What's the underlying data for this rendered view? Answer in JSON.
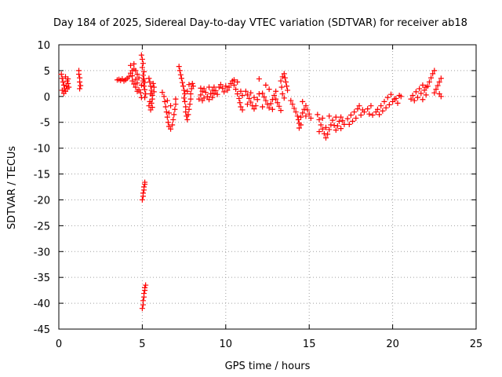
{
  "chart_data": {
    "type": "scatter",
    "title": "Day 184 of 2025, Sidereal Day-to-day VTEC variation (SDTVAR) for receiver ab18",
    "xlabel": "GPS time / hours",
    "ylabel": "SDTVAR / TECUs",
    "xlim": [
      0,
      25
    ],
    "ylim": [
      -45,
      10
    ],
    "xticks": [
      0,
      5,
      10,
      15,
      20,
      25
    ],
    "yticks": [
      10,
      5,
      0,
      -5,
      -10,
      -15,
      -20,
      -25,
      -30,
      -35,
      -40,
      -45
    ],
    "grid": true,
    "marker": "plus",
    "color": "#ff0000",
    "series": [
      {
        "name": "SDTVAR",
        "points": [
          [
            0.15,
            4.3
          ],
          [
            0.2,
            3.5
          ],
          [
            0.25,
            2.8
          ],
          [
            0.3,
            2.2
          ],
          [
            0.35,
            1.5
          ],
          [
            0.4,
            1.0
          ],
          [
            0.45,
            2.0
          ],
          [
            0.5,
            3.0
          ],
          [
            0.55,
            2.5
          ],
          [
            0.6,
            1.8
          ],
          [
            0.2,
            1.2
          ],
          [
            0.3,
            0.6
          ],
          [
            0.4,
            3.8
          ],
          [
            0.5,
            1.5
          ],
          [
            0.55,
            3.4
          ],
          [
            1.2,
            5.0
          ],
          [
            1.2,
            4.3
          ],
          [
            1.25,
            3.6
          ],
          [
            1.25,
            2.8
          ],
          [
            1.3,
            2.1
          ],
          [
            1.25,
            1.5
          ],
          [
            3.5,
            3.2
          ],
          [
            3.6,
            3.3
          ],
          [
            3.7,
            3.1
          ],
          [
            3.8,
            3.4
          ],
          [
            3.9,
            3.0
          ],
          [
            4.0,
            3.2
          ],
          [
            4.1,
            3.5
          ],
          [
            4.2,
            3.8
          ],
          [
            4.3,
            4.5
          ],
          [
            4.4,
            5.0
          ],
          [
            4.5,
            5.3
          ],
          [
            4.6,
            5.0
          ],
          [
            4.7,
            4.3
          ],
          [
            4.8,
            3.6
          ],
          [
            4.4,
            3.0
          ],
          [
            4.5,
            2.4
          ],
          [
            4.6,
            1.8
          ],
          [
            4.7,
            2.6
          ],
          [
            4.8,
            1.3
          ],
          [
            4.9,
            0.7
          ],
          [
            4.95,
            -0.2
          ],
          [
            4.3,
            6.0
          ],
          [
            4.5,
            6.3
          ],
          [
            4.4,
            4.0
          ],
          [
            4.6,
            3.3
          ],
          [
            4.7,
            1.0
          ],
          [
            4.95,
            8.0
          ],
          [
            5.0,
            7.2
          ],
          [
            5.05,
            6.4
          ],
          [
            5.0,
            5.6
          ],
          [
            5.1,
            4.8
          ],
          [
            5.05,
            4.1
          ],
          [
            5.1,
            3.4
          ],
          [
            5.15,
            2.7
          ],
          [
            5.1,
            2.0
          ],
          [
            5.15,
            1.3
          ],
          [
            5.2,
            0.5
          ],
          [
            5.15,
            -0.2
          ],
          [
            5.05,
            3.0
          ],
          [
            4.95,
            2.2
          ],
          [
            5.0,
            -20.0
          ],
          [
            5.05,
            -19.3
          ],
          [
            5.05,
            -18.7
          ],
          [
            5.1,
            -18.1
          ],
          [
            5.1,
            -17.5
          ],
          [
            5.15,
            -17.0
          ],
          [
            5.15,
            -16.6
          ],
          [
            5.0,
            -41.0
          ],
          [
            5.05,
            -40.3
          ],
          [
            5.05,
            -39.5
          ],
          [
            5.1,
            -38.8
          ],
          [
            5.1,
            -38.1
          ],
          [
            5.15,
            -37.5
          ],
          [
            5.15,
            -37.0
          ],
          [
            5.2,
            -36.5
          ],
          [
            5.4,
            3.5
          ],
          [
            5.45,
            2.8
          ],
          [
            5.5,
            2.0
          ],
          [
            5.55,
            1.2
          ],
          [
            5.5,
            0.5
          ],
          [
            5.6,
            -0.5
          ],
          [
            5.55,
            -1.3
          ],
          [
            5.6,
            -2.1
          ],
          [
            5.65,
            2.5
          ],
          [
            5.7,
            1.8
          ],
          [
            5.5,
            -2.6
          ],
          [
            5.4,
            -1.8
          ],
          [
            5.45,
            -1.0
          ],
          [
            5.6,
            0.2
          ],
          [
            5.7,
            0.9
          ],
          [
            6.2,
            0.8
          ],
          [
            6.3,
            0.0
          ],
          [
            6.35,
            -1.0
          ],
          [
            6.4,
            -2.0
          ],
          [
            6.45,
            -3.0
          ],
          [
            6.5,
            -4.0
          ],
          [
            6.55,
            -5.0
          ],
          [
            6.6,
            -5.8
          ],
          [
            6.7,
            -6.3
          ],
          [
            6.8,
            -5.5
          ],
          [
            6.85,
            -4.5
          ],
          [
            6.9,
            -3.5
          ],
          [
            6.95,
            -2.5
          ],
          [
            7.0,
            -1.5
          ],
          [
            7.0,
            -0.5
          ],
          [
            6.6,
            -3.2
          ],
          [
            6.7,
            -1.8
          ],
          [
            6.5,
            -0.8
          ],
          [
            7.2,
            5.8
          ],
          [
            7.25,
            5.0
          ],
          [
            7.3,
            4.2
          ],
          [
            7.35,
            3.5
          ],
          [
            7.4,
            2.7
          ],
          [
            7.45,
            2.0
          ],
          [
            7.5,
            1.2
          ],
          [
            7.55,
            0.5
          ],
          [
            7.5,
            -0.3
          ],
          [
            7.55,
            -1.0
          ],
          [
            7.6,
            -2.0
          ],
          [
            7.6,
            -3.0
          ],
          [
            7.65,
            -3.8
          ],
          [
            7.7,
            -4.5
          ],
          [
            7.75,
            -3.5
          ],
          [
            7.8,
            -2.5
          ],
          [
            7.85,
            -1.5
          ],
          [
            7.9,
            -0.5
          ],
          [
            7.9,
            0.5
          ],
          [
            7.95,
            1.5
          ],
          [
            8.0,
            2.5
          ],
          [
            8.05,
            2.0
          ],
          [
            7.7,
            1.0
          ],
          [
            7.8,
            2.3
          ],
          [
            8.4,
            -0.5
          ],
          [
            8.5,
            0.3
          ],
          [
            8.6,
            1.0
          ],
          [
            8.7,
            1.5
          ],
          [
            8.8,
            0.8
          ],
          [
            8.9,
            0.0
          ],
          [
            9.0,
            -0.6
          ],
          [
            9.1,
            0.5
          ],
          [
            9.2,
            1.2
          ],
          [
            9.3,
            1.8
          ],
          [
            9.4,
            1.1
          ],
          [
            9.5,
            0.4
          ],
          [
            8.5,
            1.6
          ],
          [
            8.7,
            -0.3
          ],
          [
            9.0,
            1.8
          ],
          [
            9.2,
            -0.2
          ],
          [
            9.3,
            0.6
          ],
          [
            8.6,
            -0.8
          ],
          [
            9.6,
            1.8
          ],
          [
            9.7,
            2.3
          ],
          [
            9.8,
            1.6
          ],
          [
            9.9,
            0.9
          ],
          [
            10.0,
            2.0
          ],
          [
            10.1,
            1.2
          ],
          [
            10.2,
            1.8
          ],
          [
            10.3,
            2.5
          ],
          [
            10.4,
            3.0
          ],
          [
            10.5,
            2.2
          ],
          [
            10.6,
            1.4
          ],
          [
            10.7,
            0.5
          ],
          [
            10.8,
            -0.4
          ],
          [
            10.85,
            -1.2
          ],
          [
            10.9,
            -2.0
          ],
          [
            11.0,
            -2.6
          ],
          [
            10.5,
            3.2
          ],
          [
            10.7,
            2.8
          ],
          [
            10.9,
            1.0
          ],
          [
            11.0,
            0.2
          ],
          [
            11.2,
            1.0
          ],
          [
            11.3,
            0.3
          ],
          [
            11.4,
            -0.4
          ],
          [
            11.5,
            -1.1
          ],
          [
            11.6,
            -1.8
          ],
          [
            11.7,
            -2.4
          ],
          [
            11.8,
            -1.8
          ],
          [
            11.9,
            -0.6
          ],
          [
            12.0,
            0.5
          ],
          [
            12.0,
            3.4
          ],
          [
            11.5,
            0.7
          ],
          [
            11.7,
            -0.2
          ],
          [
            11.3,
            -1.5
          ],
          [
            12.2,
            0.6
          ],
          [
            12.3,
            -0.1
          ],
          [
            12.4,
            -0.8
          ],
          [
            12.5,
            -1.5
          ],
          [
            12.6,
            -2.2
          ],
          [
            12.7,
            -1.4
          ],
          [
            12.8,
            -0.6
          ],
          [
            12.9,
            0.2
          ],
          [
            13.0,
            -0.5
          ],
          [
            13.1,
            -1.2
          ],
          [
            13.2,
            -1.9
          ],
          [
            13.3,
            -2.7
          ],
          [
            12.4,
            2.2
          ],
          [
            12.6,
            1.4
          ],
          [
            12.8,
            -2.5
          ],
          [
            13.0,
            1.0
          ],
          [
            12.2,
            -2.0
          ],
          [
            13.3,
            3.0
          ],
          [
            13.4,
            3.8
          ],
          [
            13.5,
            4.4
          ],
          [
            13.55,
            3.6
          ],
          [
            13.6,
            2.8
          ],
          [
            13.65,
            2.0
          ],
          [
            13.7,
            1.2
          ],
          [
            13.4,
            0.5
          ],
          [
            13.5,
            -0.3
          ],
          [
            13.35,
            1.8
          ],
          [
            13.9,
            -0.8
          ],
          [
            14.0,
            -1.5
          ],
          [
            14.1,
            -2.3
          ],
          [
            14.2,
            -3.0
          ],
          [
            14.3,
            -3.8
          ],
          [
            14.35,
            -4.5
          ],
          [
            14.4,
            -5.2
          ],
          [
            14.4,
            -6.1
          ],
          [
            14.5,
            -4.0
          ],
          [
            14.6,
            -3.2
          ],
          [
            14.7,
            -2.5
          ],
          [
            14.8,
            -1.8
          ],
          [
            14.9,
            -2.6
          ],
          [
            15.0,
            -3.4
          ],
          [
            15.1,
            -4.2
          ],
          [
            14.5,
            -5.5
          ],
          [
            14.6,
            -1.0
          ],
          [
            14.8,
            -3.8
          ],
          [
            15.5,
            -3.5
          ],
          [
            15.6,
            -4.5
          ],
          [
            15.7,
            -5.5
          ],
          [
            15.8,
            -6.3
          ],
          [
            15.9,
            -7.2
          ],
          [
            16.0,
            -8.0
          ],
          [
            16.1,
            -7.3
          ],
          [
            16.2,
            -6.4
          ],
          [
            16.3,
            -5.5
          ],
          [
            16.4,
            -4.6
          ],
          [
            16.5,
            -5.6
          ],
          [
            16.6,
            -6.5
          ],
          [
            16.7,
            -5.7
          ],
          [
            16.8,
            -4.8
          ],
          [
            16.9,
            -4.0
          ],
          [
            17.0,
            -4.7
          ],
          [
            17.1,
            -5.4
          ],
          [
            15.6,
            -6.8
          ],
          [
            15.8,
            -4.2
          ],
          [
            16.0,
            -6.0
          ],
          [
            16.2,
            -3.8
          ],
          [
            16.6,
            -4.0
          ],
          [
            16.9,
            -6.2
          ],
          [
            17.3,
            -4.3
          ],
          [
            17.5,
            -3.6
          ],
          [
            17.7,
            -3.0
          ],
          [
            17.9,
            -2.4
          ],
          [
            18.0,
            -1.8
          ],
          [
            17.4,
            -5.4
          ],
          [
            17.6,
            -4.8
          ],
          [
            17.8,
            -4.2
          ],
          [
            18.1,
            -3.6
          ],
          [
            18.3,
            -3.0
          ],
          [
            18.5,
            -2.4
          ],
          [
            18.7,
            -1.8
          ],
          [
            18.2,
            -2.6
          ],
          [
            18.6,
            -3.4
          ],
          [
            18.8,
            -3.6
          ],
          [
            19.0,
            -3.0
          ],
          [
            19.2,
            -3.5
          ],
          [
            19.4,
            -2.8
          ],
          [
            19.6,
            -2.2
          ],
          [
            19.8,
            -1.6
          ],
          [
            20.0,
            -1.0
          ],
          [
            20.2,
            -0.4
          ],
          [
            20.4,
            0.2
          ],
          [
            19.5,
            -1.0
          ],
          [
            19.7,
            -0.2
          ],
          [
            19.9,
            0.4
          ],
          [
            20.1,
            -0.5
          ],
          [
            20.3,
            -1.3
          ],
          [
            19.3,
            -1.8
          ],
          [
            19.1,
            -2.5
          ],
          [
            20.5,
            0.0
          ],
          [
            21.1,
            -0.5
          ],
          [
            21.2,
            0.2
          ],
          [
            21.3,
            -0.8
          ],
          [
            21.4,
            0.9
          ],
          [
            21.5,
            -0.2
          ],
          [
            21.6,
            1.5
          ],
          [
            21.7,
            0.6
          ],
          [
            21.8,
            2.2
          ],
          [
            21.9,
            1.2
          ],
          [
            22.0,
            0.3
          ],
          [
            21.8,
            -0.6
          ],
          [
            22.0,
            1.8
          ],
          [
            22.1,
            2.0
          ],
          [
            22.2,
            2.8
          ],
          [
            22.3,
            3.6
          ],
          [
            22.4,
            4.4
          ],
          [
            22.5,
            5.0
          ],
          [
            22.5,
            0.7
          ],
          [
            22.6,
            1.4
          ],
          [
            22.7,
            2.1
          ],
          [
            22.8,
            2.8
          ],
          [
            22.9,
            3.5
          ],
          [
            22.8,
            0.5
          ],
          [
            22.9,
            0.0
          ]
        ]
      }
    ]
  }
}
